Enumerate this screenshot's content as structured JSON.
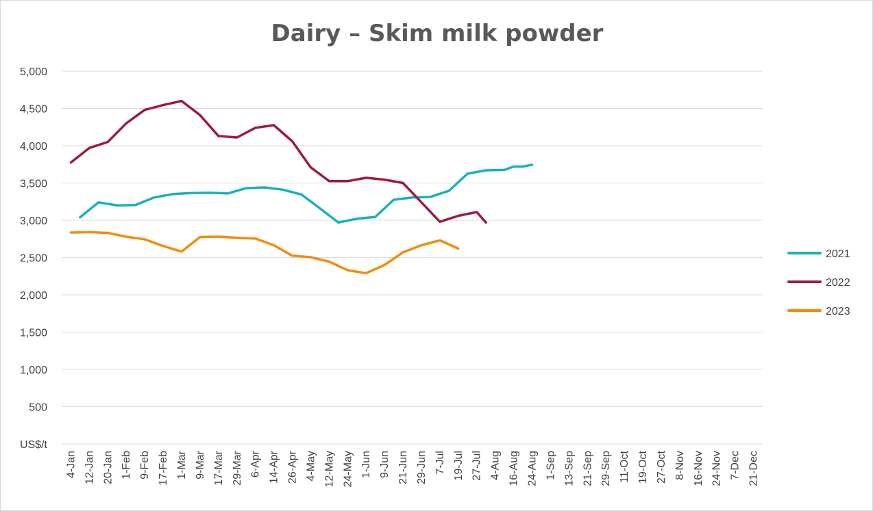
{
  "chart_data": {
    "type": "line",
    "title": "Dairy – Skim milk powder",
    "ylabel": "US$/t",
    "xlabel": "",
    "ylim": [
      0,
      5000
    ],
    "yticks": [
      0,
      500,
      1000,
      1500,
      2000,
      2500,
      3000,
      3500,
      4000,
      4500,
      5000
    ],
    "ytick_labels": [
      "US$/t",
      "500",
      "1,000",
      "1,500",
      "2,000",
      "2,500",
      "3,000",
      "3,500",
      "4,000",
      "4,500",
      "5,000"
    ],
    "grid": true,
    "legend_position": "right",
    "categories": [
      "4-Jan",
      "12-Jan",
      "20-Jan",
      "1-Feb",
      "9-Feb",
      "17-Feb",
      "1-Mar",
      "9-Mar",
      "17-Mar",
      "29-Mar",
      "6-Apr",
      "14-Apr",
      "26-Apr",
      "4-May",
      "12-May",
      "24-May",
      "1-Jun",
      "9-Jun",
      "21-Jun",
      "29-Jun",
      "7-Jul",
      "19-Jul",
      "27-Jul",
      "4-Aug",
      "16-Aug",
      "24-Aug",
      "1-Sep",
      "13-Sep",
      "21-Sep",
      "29-Sep",
      "11-Oct",
      "19-Oct",
      "27-Oct",
      "8-Nov",
      "16-Nov",
      "24-Nov",
      "7-Dec",
      "21-Dec"
    ],
    "series": [
      {
        "name": "2021",
        "color": "#17b1bb",
        "points": [
          [
            0.5,
            3040
          ],
          [
            1.5,
            3240
          ],
          [
            2.5,
            3200
          ],
          [
            3.5,
            3205
          ],
          [
            4.5,
            3305
          ],
          [
            5.5,
            3350
          ],
          [
            6.5,
            3365
          ],
          [
            7.5,
            3370
          ],
          [
            8.5,
            3360
          ],
          [
            9.5,
            3430
          ],
          [
            10.5,
            3440
          ],
          [
            11.5,
            3410
          ],
          [
            12.5,
            3345
          ],
          [
            13.5,
            3160
          ],
          [
            14.5,
            2970
          ],
          [
            15.5,
            3020
          ],
          [
            16.5,
            3045
          ],
          [
            17.5,
            3275
          ],
          [
            18.5,
            3305
          ],
          [
            19.5,
            3315
          ],
          [
            20.5,
            3395
          ],
          [
            21.5,
            3625
          ],
          [
            22.5,
            3670
          ],
          [
            23.5,
            3675
          ],
          [
            24.0,
            3720
          ],
          [
            24.5,
            3720
          ],
          [
            25.0,
            3745
          ]
        ]
      },
      {
        "name": "2022",
        "color": "#9d1b3c",
        "points": [
          [
            0,
            3775
          ],
          [
            1,
            3970
          ],
          [
            2,
            4050
          ],
          [
            3,
            4300
          ],
          [
            4,
            4480
          ],
          [
            5,
            4545
          ],
          [
            6,
            4600
          ],
          [
            7,
            4410
          ],
          [
            8,
            4130
          ],
          [
            9,
            4110
          ],
          [
            10,
            4240
          ],
          [
            11,
            4275
          ],
          [
            12,
            4060
          ],
          [
            13,
            3710
          ],
          [
            14,
            3525
          ],
          [
            15,
            3525
          ],
          [
            16,
            3570
          ],
          [
            17,
            3545
          ],
          [
            18,
            3500
          ],
          [
            19,
            3240
          ],
          [
            20,
            2980
          ],
          [
            21,
            3060
          ],
          [
            22,
            3110
          ],
          [
            22.5,
            2970
          ]
        ]
      },
      {
        "name": "2023",
        "color": "#f28c0f",
        "points": [
          [
            0,
            2835
          ],
          [
            1,
            2840
          ],
          [
            2,
            2830
          ],
          [
            3,
            2780
          ],
          [
            4,
            2745
          ],
          [
            5,
            2655
          ],
          [
            6,
            2580
          ],
          [
            7,
            2775
          ],
          [
            8,
            2780
          ],
          [
            9,
            2765
          ],
          [
            10,
            2755
          ],
          [
            11,
            2665
          ],
          [
            12,
            2525
          ],
          [
            13,
            2505
          ],
          [
            14,
            2445
          ],
          [
            15,
            2330
          ],
          [
            16,
            2290
          ],
          [
            17,
            2400
          ],
          [
            18,
            2570
          ],
          [
            19,
            2665
          ],
          [
            20,
            2730
          ],
          [
            21,
            2620
          ]
        ]
      }
    ]
  }
}
